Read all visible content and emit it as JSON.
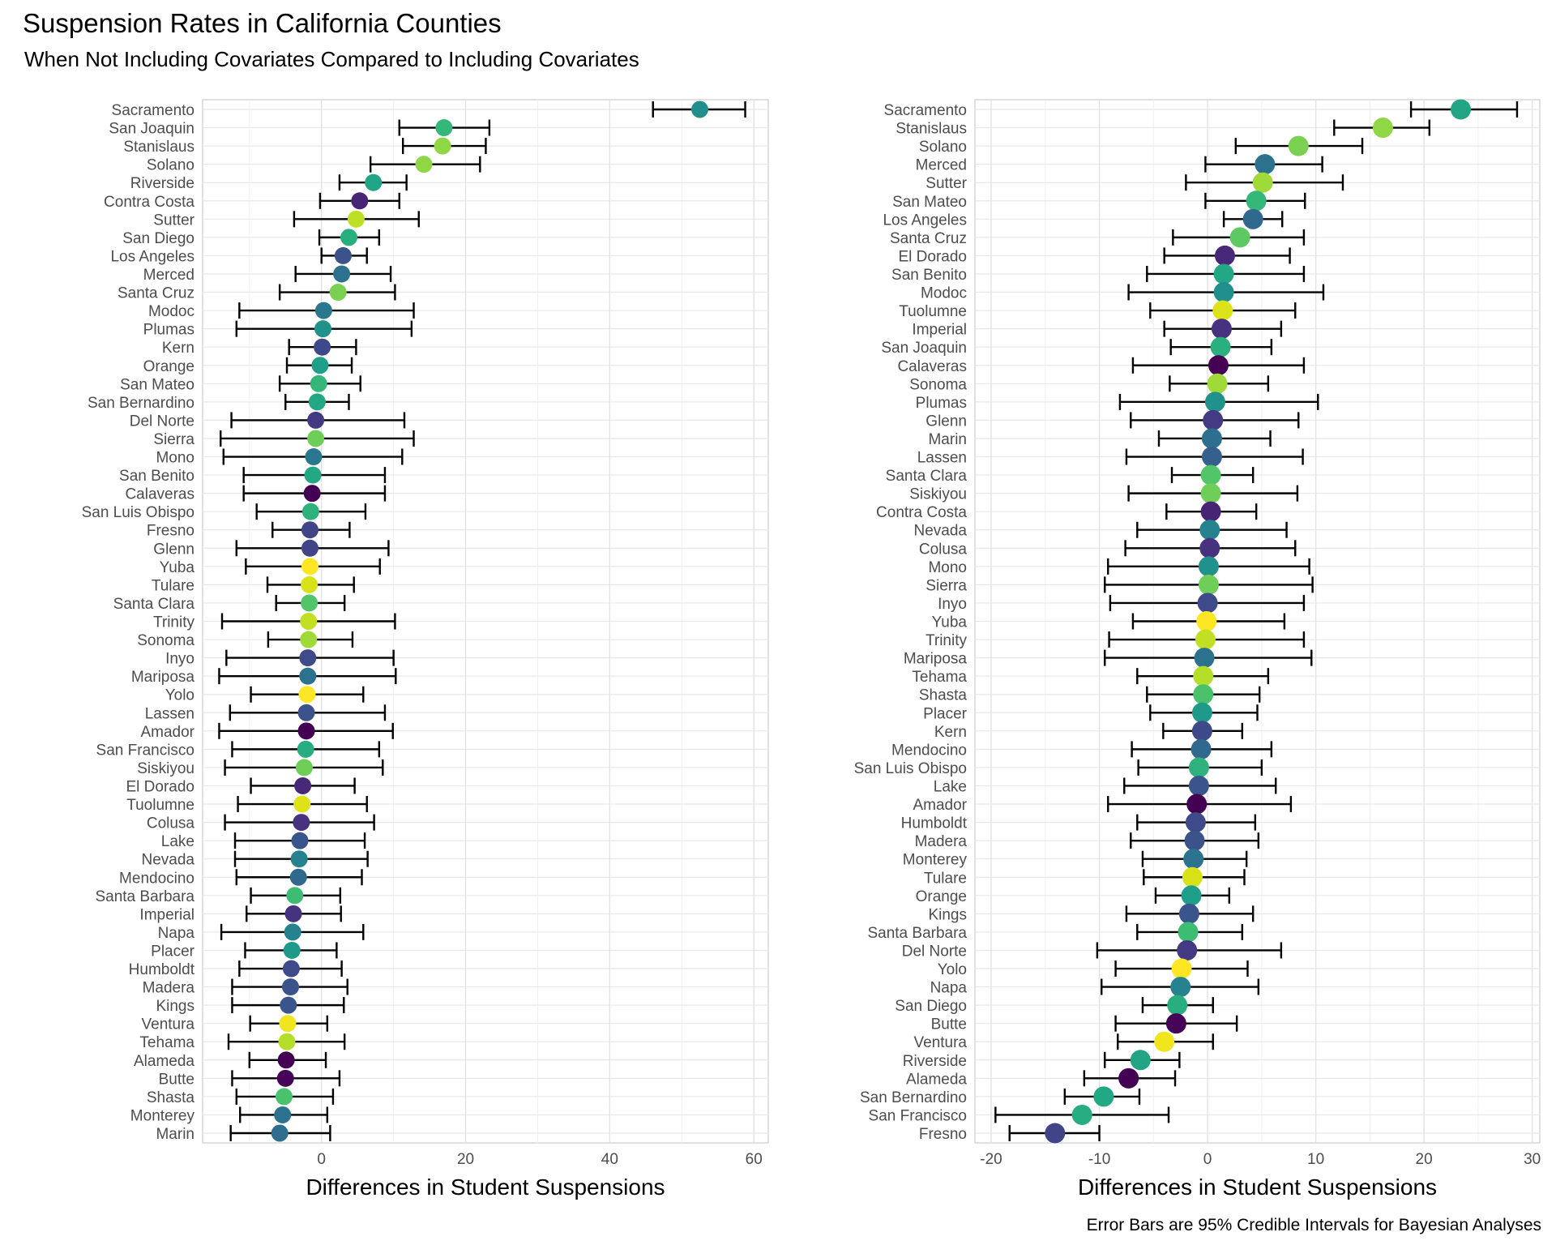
{
  "title": "Suspension Rates in California Counties",
  "subtitle": "When Not Including Covariates Compared to Including Covariates",
  "caption": "Error Bars are 95% Credible Intervals for Bayesian Analyses",
  "chart_data": [
    {
      "type": "scatter",
      "xlabel": "Differences in Student Suspensions",
      "xlim": [
        -16.5,
        62
      ],
      "xticks": [
        0,
        20,
        40,
        60
      ],
      "xtick_labels": [
        "0",
        "20",
        "40",
        "60"
      ],
      "grid": true,
      "points": [
        {
          "county": "Sacramento",
          "value": 52.5,
          "lower": 46.0,
          "upper": 58.8,
          "color": "#21908d"
        },
        {
          "county": "San Joaquin",
          "value": 17.0,
          "lower": 10.8,
          "upper": 23.3,
          "color": "#35b779"
        },
        {
          "county": "Stanislaus",
          "value": 16.8,
          "lower": 11.3,
          "upper": 22.8,
          "color": "#8fd744"
        },
        {
          "county": "Solano",
          "value": 14.2,
          "lower": 6.8,
          "upper": 22.0,
          "color": "#8fd744"
        },
        {
          "county": "Riverside",
          "value": 7.2,
          "lower": 2.5,
          "upper": 11.8,
          "color": "#21a585"
        },
        {
          "county": "Contra Costa",
          "value": 5.3,
          "lower": -0.2,
          "upper": 10.8,
          "color": "#482475"
        },
        {
          "county": "Sutter",
          "value": 4.8,
          "lower": -3.8,
          "upper": 13.5,
          "color": "#bddf26"
        },
        {
          "county": "San Diego",
          "value": 3.8,
          "lower": -0.3,
          "upper": 8.0,
          "color": "#29af7f"
        },
        {
          "county": "Los Angeles",
          "value": 3.0,
          "lower": 0.0,
          "upper": 6.3,
          "color": "#3b528b"
        },
        {
          "county": "Merced",
          "value": 2.8,
          "lower": -3.6,
          "upper": 9.6,
          "color": "#2c728e"
        },
        {
          "county": "Santa Cruz",
          "value": 2.3,
          "lower": -5.8,
          "upper": 10.2,
          "color": "#7ad151"
        },
        {
          "county": "Modoc",
          "value": 0.3,
          "lower": -11.4,
          "upper": 12.8,
          "color": "#2a788e"
        },
        {
          "county": "Plumas",
          "value": 0.2,
          "lower": -11.8,
          "upper": 12.5,
          "color": "#21918c"
        },
        {
          "county": "Kern",
          "value": 0.1,
          "lower": -4.5,
          "upper": 4.8,
          "color": "#3e4989"
        },
        {
          "county": "Orange",
          "value": -0.2,
          "lower": -4.8,
          "upper": 4.2,
          "color": "#1f9e89"
        },
        {
          "county": "San Mateo",
          "value": -0.4,
          "lower": -5.8,
          "upper": 5.4,
          "color": "#35b779"
        },
        {
          "county": "San Bernardino",
          "value": -0.6,
          "lower": -5.0,
          "upper": 3.8,
          "color": "#22a884"
        },
        {
          "county": "Del Norte",
          "value": -0.8,
          "lower": -12.5,
          "upper": 11.5,
          "color": "#443983"
        },
        {
          "county": "Sierra",
          "value": -0.8,
          "lower": -14.0,
          "upper": 12.8,
          "color": "#6ece58"
        },
        {
          "county": "Mono",
          "value": -1.1,
          "lower": -13.6,
          "upper": 11.2,
          "color": "#2a788e"
        },
        {
          "county": "San Benito",
          "value": -1.2,
          "lower": -10.8,
          "upper": 8.8,
          "color": "#22a884"
        },
        {
          "county": "Calaveras",
          "value": -1.3,
          "lower": -10.8,
          "upper": 8.8,
          "color": "#440154"
        },
        {
          "county": "San Luis Obispo",
          "value": -1.5,
          "lower": -9.0,
          "upper": 6.1,
          "color": "#2db27d"
        },
        {
          "county": "Fresno",
          "value": -1.6,
          "lower": -6.8,
          "upper": 3.9,
          "color": "#414487"
        },
        {
          "county": "Glenn",
          "value": -1.6,
          "lower": -11.8,
          "upper": 9.3,
          "color": "#414487"
        },
        {
          "county": "Yuba",
          "value": -1.6,
          "lower": -10.5,
          "upper": 8.1,
          "color": "#fde725"
        },
        {
          "county": "Tulare",
          "value": -1.7,
          "lower": -7.5,
          "upper": 4.5,
          "color": "#d8e219"
        },
        {
          "county": "Santa Clara",
          "value": -1.7,
          "lower": -6.3,
          "upper": 3.2,
          "color": "#52c569"
        },
        {
          "county": "Trinity",
          "value": -1.8,
          "lower": -13.8,
          "upper": 10.2,
          "color": "#c2df23"
        },
        {
          "county": "Sonoma",
          "value": -1.8,
          "lower": -7.4,
          "upper": 4.3,
          "color": "#a0da39"
        },
        {
          "county": "Inyo",
          "value": -1.9,
          "lower": -13.2,
          "upper": 10.0,
          "color": "#3e4a89"
        },
        {
          "county": "Mariposa",
          "value": -1.9,
          "lower": -14.2,
          "upper": 10.3,
          "color": "#2c728e"
        },
        {
          "county": "Yolo",
          "value": -2.0,
          "lower": -9.8,
          "upper": 5.8,
          "color": "#fde725"
        },
        {
          "county": "Lassen",
          "value": -2.1,
          "lower": -12.7,
          "upper": 8.8,
          "color": "#3b528b"
        },
        {
          "county": "Amador",
          "value": -2.1,
          "lower": -14.2,
          "upper": 9.9,
          "color": "#440154"
        },
        {
          "county": "San Francisco",
          "value": -2.2,
          "lower": -12.4,
          "upper": 8.0,
          "color": "#27ad81"
        },
        {
          "county": "Siskiyou",
          "value": -2.4,
          "lower": -13.4,
          "upper": 8.5,
          "color": "#6ece58"
        },
        {
          "county": "El Dorado",
          "value": -2.6,
          "lower": -9.8,
          "upper": 4.6,
          "color": "#482878"
        },
        {
          "county": "Tuolumne",
          "value": -2.7,
          "lower": -11.6,
          "upper": 6.3,
          "color": "#dde318"
        },
        {
          "county": "Colusa",
          "value": -2.8,
          "lower": -13.4,
          "upper": 7.3,
          "color": "#46327e"
        },
        {
          "county": "Lake",
          "value": -3.0,
          "lower": -12.0,
          "upper": 6.0,
          "color": "#39558c"
        },
        {
          "county": "Nevada",
          "value": -3.1,
          "lower": -12.0,
          "upper": 6.4,
          "color": "#26828e"
        },
        {
          "county": "Mendocino",
          "value": -3.2,
          "lower": -11.8,
          "upper": 5.6,
          "color": "#31688e"
        },
        {
          "county": "Santa Barbara",
          "value": -3.7,
          "lower": -9.8,
          "upper": 2.6,
          "color": "#3dbc74"
        },
        {
          "county": "Imperial",
          "value": -3.9,
          "lower": -10.4,
          "upper": 2.7,
          "color": "#46337f"
        },
        {
          "county": "Napa",
          "value": -4.0,
          "lower": -13.9,
          "upper": 5.8,
          "color": "#26828e"
        },
        {
          "county": "Placer",
          "value": -4.1,
          "lower": -10.6,
          "upper": 2.1,
          "color": "#1f9a8a"
        },
        {
          "county": "Humboldt",
          "value": -4.2,
          "lower": -11.4,
          "upper": 2.8,
          "color": "#3e4a89"
        },
        {
          "county": "Madera",
          "value": -4.3,
          "lower": -12.4,
          "upper": 3.6,
          "color": "#3b528b"
        },
        {
          "county": "Kings",
          "value": -4.6,
          "lower": -12.4,
          "upper": 3.1,
          "color": "#3a548c"
        },
        {
          "county": "Ventura",
          "value": -4.7,
          "lower": -9.9,
          "upper": 0.8,
          "color": "#f1e51d"
        },
        {
          "county": "Tehama",
          "value": -4.8,
          "lower": -12.9,
          "upper": 3.2,
          "color": "#b5de2b"
        },
        {
          "county": "Alameda",
          "value": -4.9,
          "lower": -10.0,
          "upper": 0.6,
          "color": "#440154"
        },
        {
          "county": "Butte",
          "value": -5.0,
          "lower": -12.4,
          "upper": 2.5,
          "color": "#450457"
        },
        {
          "county": "Shasta",
          "value": -5.2,
          "lower": -11.8,
          "upper": 1.6,
          "color": "#4ac16d"
        },
        {
          "county": "Monterey",
          "value": -5.4,
          "lower": -11.3,
          "upper": 0.8,
          "color": "#2c728e"
        },
        {
          "county": "Marin",
          "value": -5.8,
          "lower": -12.6,
          "upper": 1.2,
          "color": "#2e6e8e"
        }
      ]
    },
    {
      "type": "scatter",
      "xlabel": "Differences in Student Suspensions",
      "xlim": [
        -21.5,
        30.7
      ],
      "xticks": [
        -20,
        -10,
        0,
        10,
        20,
        30
      ],
      "xtick_labels": [
        "-20",
        "-10",
        "0",
        "10",
        "20",
        "30"
      ],
      "grid": true,
      "points": [
        {
          "county": "Sacramento",
          "value": 23.4,
          "lower": 18.8,
          "upper": 28.6,
          "color": "#21a585"
        },
        {
          "county": "Stanislaus",
          "value": 16.2,
          "lower": 11.7,
          "upper": 20.5,
          "color": "#8fd744"
        },
        {
          "county": "Solano",
          "value": 8.4,
          "lower": 2.6,
          "upper": 14.3,
          "color": "#7ad151"
        },
        {
          "county": "Merced",
          "value": 5.3,
          "lower": -0.2,
          "upper": 10.6,
          "color": "#2c728e"
        },
        {
          "county": "Sutter",
          "value": 5.1,
          "lower": -2.0,
          "upper": 12.5,
          "color": "#a0da39"
        },
        {
          "county": "San Mateo",
          "value": 4.5,
          "lower": -0.2,
          "upper": 9.0,
          "color": "#35b779"
        },
        {
          "county": "Los Angeles",
          "value": 4.2,
          "lower": 1.5,
          "upper": 6.9,
          "color": "#31688e"
        },
        {
          "county": "Santa Cruz",
          "value": 3.0,
          "lower": -3.2,
          "upper": 8.9,
          "color": "#5ec962"
        },
        {
          "county": "El Dorado",
          "value": 1.6,
          "lower": -4.0,
          "upper": 7.6,
          "color": "#482878"
        },
        {
          "county": "San Benito",
          "value": 1.5,
          "lower": -5.6,
          "upper": 8.9,
          "color": "#22a884"
        },
        {
          "county": "Modoc",
          "value": 1.5,
          "lower": -7.3,
          "upper": 10.7,
          "color": "#21908d"
        },
        {
          "county": "Tuolumne",
          "value": 1.4,
          "lower": -5.3,
          "upper": 8.1,
          "color": "#dde318"
        },
        {
          "county": "Imperial",
          "value": 1.3,
          "lower": -4.0,
          "upper": 6.8,
          "color": "#46327e"
        },
        {
          "county": "San Joaquin",
          "value": 1.2,
          "lower": -3.4,
          "upper": 5.9,
          "color": "#2ab07f"
        },
        {
          "county": "Calaveras",
          "value": 1.0,
          "lower": -6.9,
          "upper": 8.9,
          "color": "#440154"
        },
        {
          "county": "Sonoma",
          "value": 0.9,
          "lower": -3.5,
          "upper": 5.6,
          "color": "#a0da39"
        },
        {
          "county": "Plumas",
          "value": 0.7,
          "lower": -8.1,
          "upper": 10.2,
          "color": "#21918c"
        },
        {
          "county": "Glenn",
          "value": 0.5,
          "lower": -7.1,
          "upper": 8.4,
          "color": "#443983"
        },
        {
          "county": "Marin",
          "value": 0.4,
          "lower": -4.5,
          "upper": 5.8,
          "color": "#2e6e8e"
        },
        {
          "county": "Lassen",
          "value": 0.4,
          "lower": -7.5,
          "upper": 8.8,
          "color": "#35608d"
        },
        {
          "county": "Santa Clara",
          "value": 0.3,
          "lower": -3.3,
          "upper": 4.2,
          "color": "#52c569"
        },
        {
          "county": "Siskiyou",
          "value": 0.3,
          "lower": -7.3,
          "upper": 8.3,
          "color": "#6ece58"
        },
        {
          "county": "Contra Costa",
          "value": 0.3,
          "lower": -3.8,
          "upper": 4.5,
          "color": "#482475"
        },
        {
          "county": "Nevada",
          "value": 0.2,
          "lower": -6.5,
          "upper": 7.3,
          "color": "#26828e"
        },
        {
          "county": "Colusa",
          "value": 0.2,
          "lower": -7.6,
          "upper": 8.1,
          "color": "#46327e"
        },
        {
          "county": "Mono",
          "value": 0.1,
          "lower": -9.2,
          "upper": 9.4,
          "color": "#21918c"
        },
        {
          "county": "Sierra",
          "value": 0.1,
          "lower": -9.5,
          "upper": 9.7,
          "color": "#6ece58"
        },
        {
          "county": "Inyo",
          "value": 0.0,
          "lower": -9.0,
          "upper": 8.9,
          "color": "#3e4a89"
        },
        {
          "county": "Yuba",
          "value": -0.1,
          "lower": -6.9,
          "upper": 7.1,
          "color": "#fde725"
        },
        {
          "county": "Trinity",
          "value": -0.2,
          "lower": -9.1,
          "upper": 8.9,
          "color": "#c2df23"
        },
        {
          "county": "Mariposa",
          "value": -0.3,
          "lower": -9.5,
          "upper": 9.6,
          "color": "#2c728e"
        },
        {
          "county": "Tehama",
          "value": -0.4,
          "lower": -6.5,
          "upper": 5.6,
          "color": "#b5de2b"
        },
        {
          "county": "Shasta",
          "value": -0.4,
          "lower": -5.6,
          "upper": 4.8,
          "color": "#4ac16d"
        },
        {
          "county": "Placer",
          "value": -0.5,
          "lower": -5.3,
          "upper": 4.6,
          "color": "#1f9a8a"
        },
        {
          "county": "Kern",
          "value": -0.5,
          "lower": -4.1,
          "upper": 3.2,
          "color": "#3e4989"
        },
        {
          "county": "Mendocino",
          "value": -0.6,
          "lower": -7.0,
          "upper": 5.9,
          "color": "#31688e"
        },
        {
          "county": "San Luis Obispo",
          "value": -0.8,
          "lower": -6.4,
          "upper": 5.0,
          "color": "#2db27d"
        },
        {
          "county": "Lake",
          "value": -0.8,
          "lower": -7.7,
          "upper": 6.3,
          "color": "#39558c"
        },
        {
          "county": "Amador",
          "value": -1.0,
          "lower": -9.2,
          "upper": 7.7,
          "color": "#440154"
        },
        {
          "county": "Humboldt",
          "value": -1.1,
          "lower": -6.5,
          "upper": 4.4,
          "color": "#3e4a89"
        },
        {
          "county": "Madera",
          "value": -1.2,
          "lower": -7.1,
          "upper": 4.7,
          "color": "#3b528b"
        },
        {
          "county": "Monterey",
          "value": -1.3,
          "lower": -6.0,
          "upper": 3.6,
          "color": "#2c728e"
        },
        {
          "county": "Tulare",
          "value": -1.4,
          "lower": -5.9,
          "upper": 3.4,
          "color": "#d8e219"
        },
        {
          "county": "Orange",
          "value": -1.5,
          "lower": -4.8,
          "upper": 2.0,
          "color": "#1f9e89"
        },
        {
          "county": "Kings",
          "value": -1.7,
          "lower": -7.5,
          "upper": 4.2,
          "color": "#3a548c"
        },
        {
          "county": "Santa Barbara",
          "value": -1.8,
          "lower": -6.5,
          "upper": 3.2,
          "color": "#3dbc74"
        },
        {
          "county": "Del Norte",
          "value": -1.9,
          "lower": -10.2,
          "upper": 6.8,
          "color": "#443983"
        },
        {
          "county": "Yolo",
          "value": -2.4,
          "lower": -8.5,
          "upper": 3.7,
          "color": "#fde725"
        },
        {
          "county": "Napa",
          "value": -2.5,
          "lower": -9.8,
          "upper": 4.7,
          "color": "#26828e"
        },
        {
          "county": "San Diego",
          "value": -2.8,
          "lower": -6.0,
          "upper": 0.5,
          "color": "#29af7f"
        },
        {
          "county": "Butte",
          "value": -2.9,
          "lower": -8.5,
          "upper": 2.7,
          "color": "#450457"
        },
        {
          "county": "Ventura",
          "value": -4.0,
          "lower": -8.3,
          "upper": 0.5,
          "color": "#f1e51d"
        },
        {
          "county": "Riverside",
          "value": -6.2,
          "lower": -9.5,
          "upper": -2.6,
          "color": "#21a585"
        },
        {
          "county": "Alameda",
          "value": -7.3,
          "lower": -11.4,
          "upper": -3.0,
          "color": "#440154"
        },
        {
          "county": "San Bernardino",
          "value": -9.6,
          "lower": -13.2,
          "upper": -6.3,
          "color": "#22a884"
        },
        {
          "county": "San Francisco",
          "value": -11.6,
          "lower": -19.6,
          "upper": -3.6,
          "color": "#27ad81"
        },
        {
          "county": "Fresno",
          "value": -14.1,
          "lower": -18.3,
          "upper": -10.0,
          "color": "#414487"
        }
      ]
    }
  ]
}
